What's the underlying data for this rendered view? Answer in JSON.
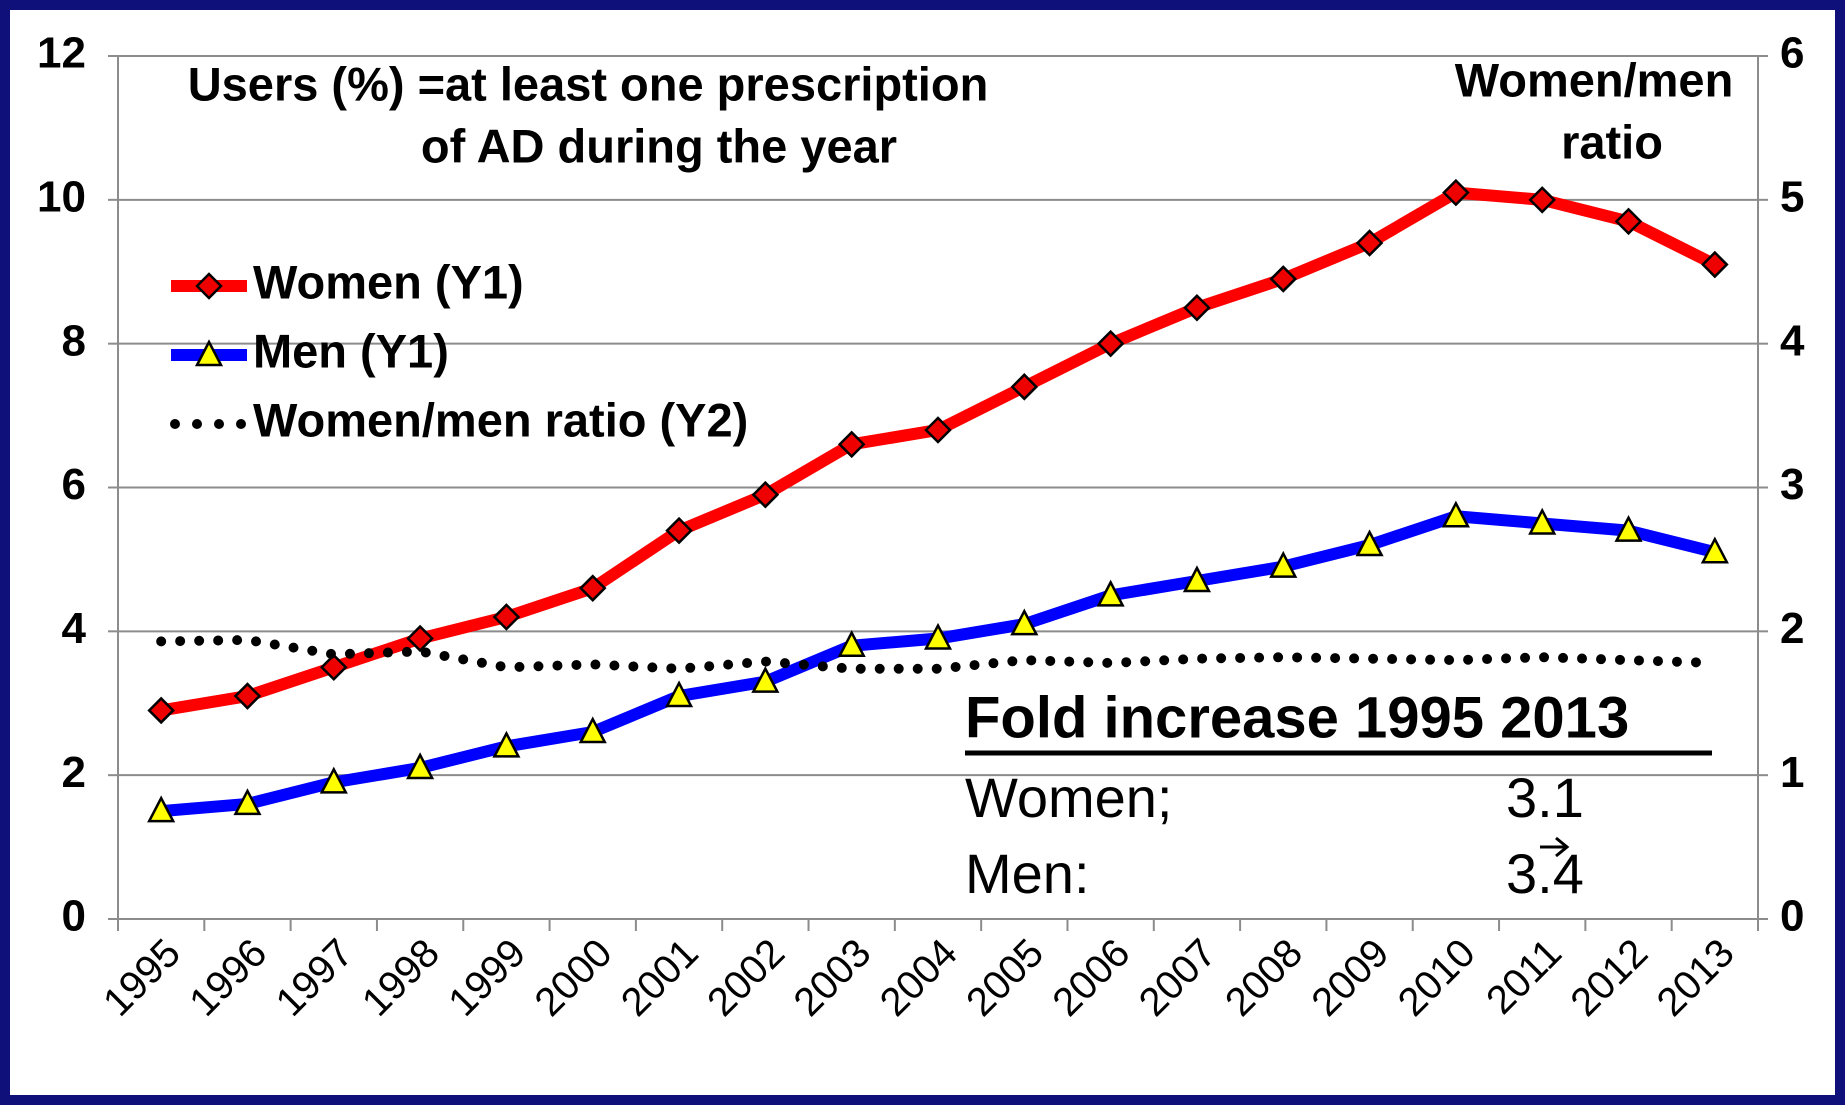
{
  "chart_data": {
    "type": "line",
    "annotation": [
      "Users (%) =at least one prescription",
      "of AD during the year"
    ],
    "y2label": [
      "Women/men",
      "ratio"
    ],
    "categories": [
      "1995",
      "1996",
      "1997",
      "1998",
      "1999",
      "2000",
      "2001",
      "2002",
      "2003",
      "2004",
      "2005",
      "2006",
      "2007",
      "2008",
      "2009",
      "2010",
      "2011",
      "2012",
      "2013"
    ],
    "series": [
      {
        "name": "Women (Y1)",
        "color": "#ff0000",
        "marker": "diamond",
        "marker_color": "#ee0000",
        "values": [
          2.9,
          3.1,
          3.5,
          3.9,
          4.2,
          4.6,
          5.4,
          5.9,
          6.6,
          6.8,
          7.4,
          8.0,
          8.5,
          8.9,
          9.4,
          10.1,
          10.0,
          9.7,
          9.1
        ]
      },
      {
        "name": "Men (Y1)",
        "color": "#0000ff",
        "marker": "triangle",
        "marker_color": "#ffff00",
        "values": [
          1.5,
          1.6,
          1.9,
          2.1,
          2.4,
          2.6,
          3.1,
          3.3,
          3.8,
          3.9,
          4.1,
          4.5,
          4.7,
          4.9,
          5.2,
          5.6,
          5.5,
          5.4,
          5.1
        ]
      },
      {
        "name": "Women/men ratio (Y2)",
        "color": "#000000",
        "style": "dotted",
        "axis": "y2",
        "values": [
          1.93,
          1.94,
          1.84,
          1.86,
          1.75,
          1.77,
          1.74,
          1.79,
          1.74,
          1.74,
          1.8,
          1.78,
          1.81,
          1.82,
          1.81,
          1.8,
          1.82,
          1.8,
          1.78
        ]
      }
    ],
    "ylim": [
      0,
      12
    ],
    "yticks": [
      0,
      2,
      4,
      6,
      8,
      10,
      12
    ],
    "y2lim": [
      0,
      6
    ],
    "y2ticks": [
      0,
      1,
      2,
      3,
      4,
      5,
      6
    ],
    "grid": true,
    "legend": "upper left",
    "fold_box": {
      "title": "Fold increase 1995  2013",
      "rows": [
        [
          "Women;",
          3.1
        ],
        [
          "Men:",
          3.4
        ]
      ]
    }
  }
}
